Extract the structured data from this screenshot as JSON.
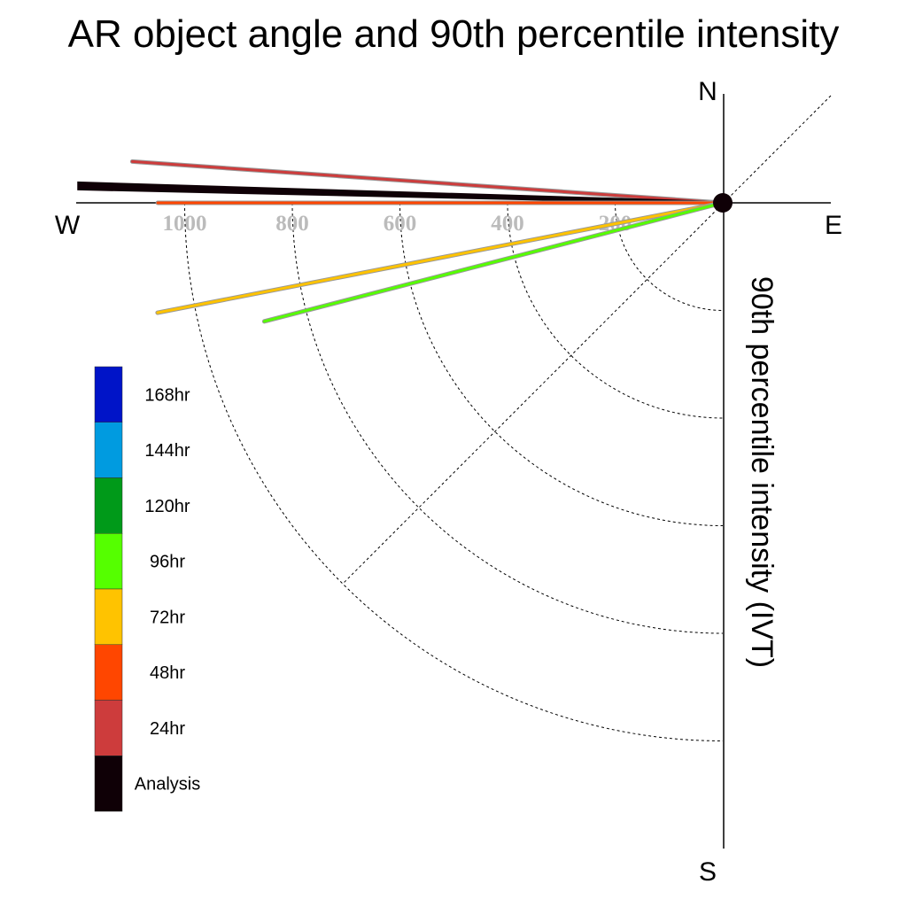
{
  "title": "AR object angle and 90th percentile intensity",
  "chart_data": {
    "type": "polar-quadrant-rays",
    "title": "AR object angle and 90th percentile intensity",
    "ylabel": "90th percentile intensity (IVT)",
    "directions": {
      "north": "N",
      "south": "S",
      "east": "E",
      "west": "W"
    },
    "radial_ticks": [
      200,
      400,
      600,
      800,
      1000
    ],
    "radial_tick_labels": [
      "200",
      "400",
      "600",
      "800",
      "1000"
    ],
    "rmax": 1200,
    "grid": true,
    "legend_position": "left",
    "legend": [
      {
        "label": "168hr",
        "color": "#0014c8"
      },
      {
        "label": "144hr",
        "color": "#009be0"
      },
      {
        "label": "120hr",
        "color": "#009a19"
      },
      {
        "label": "96hr",
        "color": "#55ff00"
      },
      {
        "label": "72hr",
        "color": "#ffc300"
      },
      {
        "label": "48hr",
        "color": "#ff4600"
      },
      {
        "label": "24hr",
        "color": "#cd3c3c"
      },
      {
        "label": "Analysis",
        "color": "#0f0006"
      }
    ],
    "series": [
      {
        "name": "24hr",
        "angle_deg": 176,
        "intensity": 1100,
        "color": "#cd3c3c"
      },
      {
        "name": "Analysis",
        "angle_deg": 178.5,
        "intensity": 1200,
        "color": "#0f0006"
      },
      {
        "name": "48hr",
        "angle_deg": 180,
        "intensity": 1050,
        "color": "#ff4600"
      },
      {
        "name": "72hr",
        "angle_deg": 191,
        "intensity": 1070,
        "color": "#ffc300"
      },
      {
        "name": "96hr",
        "angle_deg": 194.5,
        "intensity": 880,
        "color": "#55ff00"
      }
    ]
  }
}
